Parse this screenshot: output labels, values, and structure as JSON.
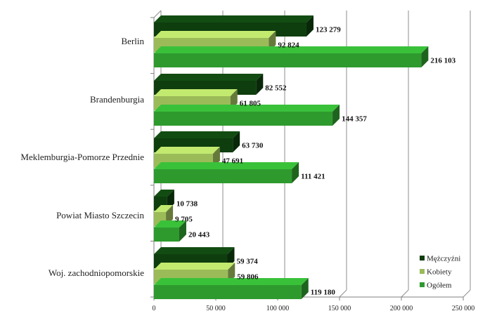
{
  "chart_data": {
    "type": "bar",
    "orientation": "horizontal",
    "style": "3d",
    "categories": [
      "Berlin",
      "Brandenburgia",
      "Meklemburgia-Pomorze Przednie",
      "Powiat Miasto Szczecin",
      "Woj. zachodniopomorskie"
    ],
    "series": [
      {
        "name": "Mężczyźni",
        "color": "#0e3d0e",
        "values": [
          123279,
          82552,
          63730,
          10738,
          59374
        ],
        "value_labels": [
          "123 279",
          "82 552",
          "63 730",
          "10 738",
          "59 374"
        ]
      },
      {
        "name": "Kobiety",
        "color": "#9bbb59",
        "values": [
          92824,
          61805,
          47691,
          9705,
          59806
        ],
        "value_labels": [
          "92 824",
          "61 805",
          "47 691",
          "9 705",
          "59 806"
        ]
      },
      {
        "name": "Ogółem",
        "color": "#2e9a2e",
        "values": [
          216103,
          144357,
          111421,
          20443,
          119180
        ],
        "value_labels": [
          "216 103",
          "144 357",
          "111 421",
          "20 443",
          "119 180"
        ]
      }
    ],
    "xlim": [
      0,
      250000
    ],
    "x_ticks": [
      0,
      50000,
      100000,
      150000,
      200000,
      250000
    ],
    "x_tick_labels": [
      "0",
      "50 000",
      "100 000",
      "150 000",
      "200 000",
      "250 000"
    ],
    "grid": true,
    "legend_position": "bottom-right",
    "title": "",
    "xlabel": "",
    "ylabel": ""
  }
}
